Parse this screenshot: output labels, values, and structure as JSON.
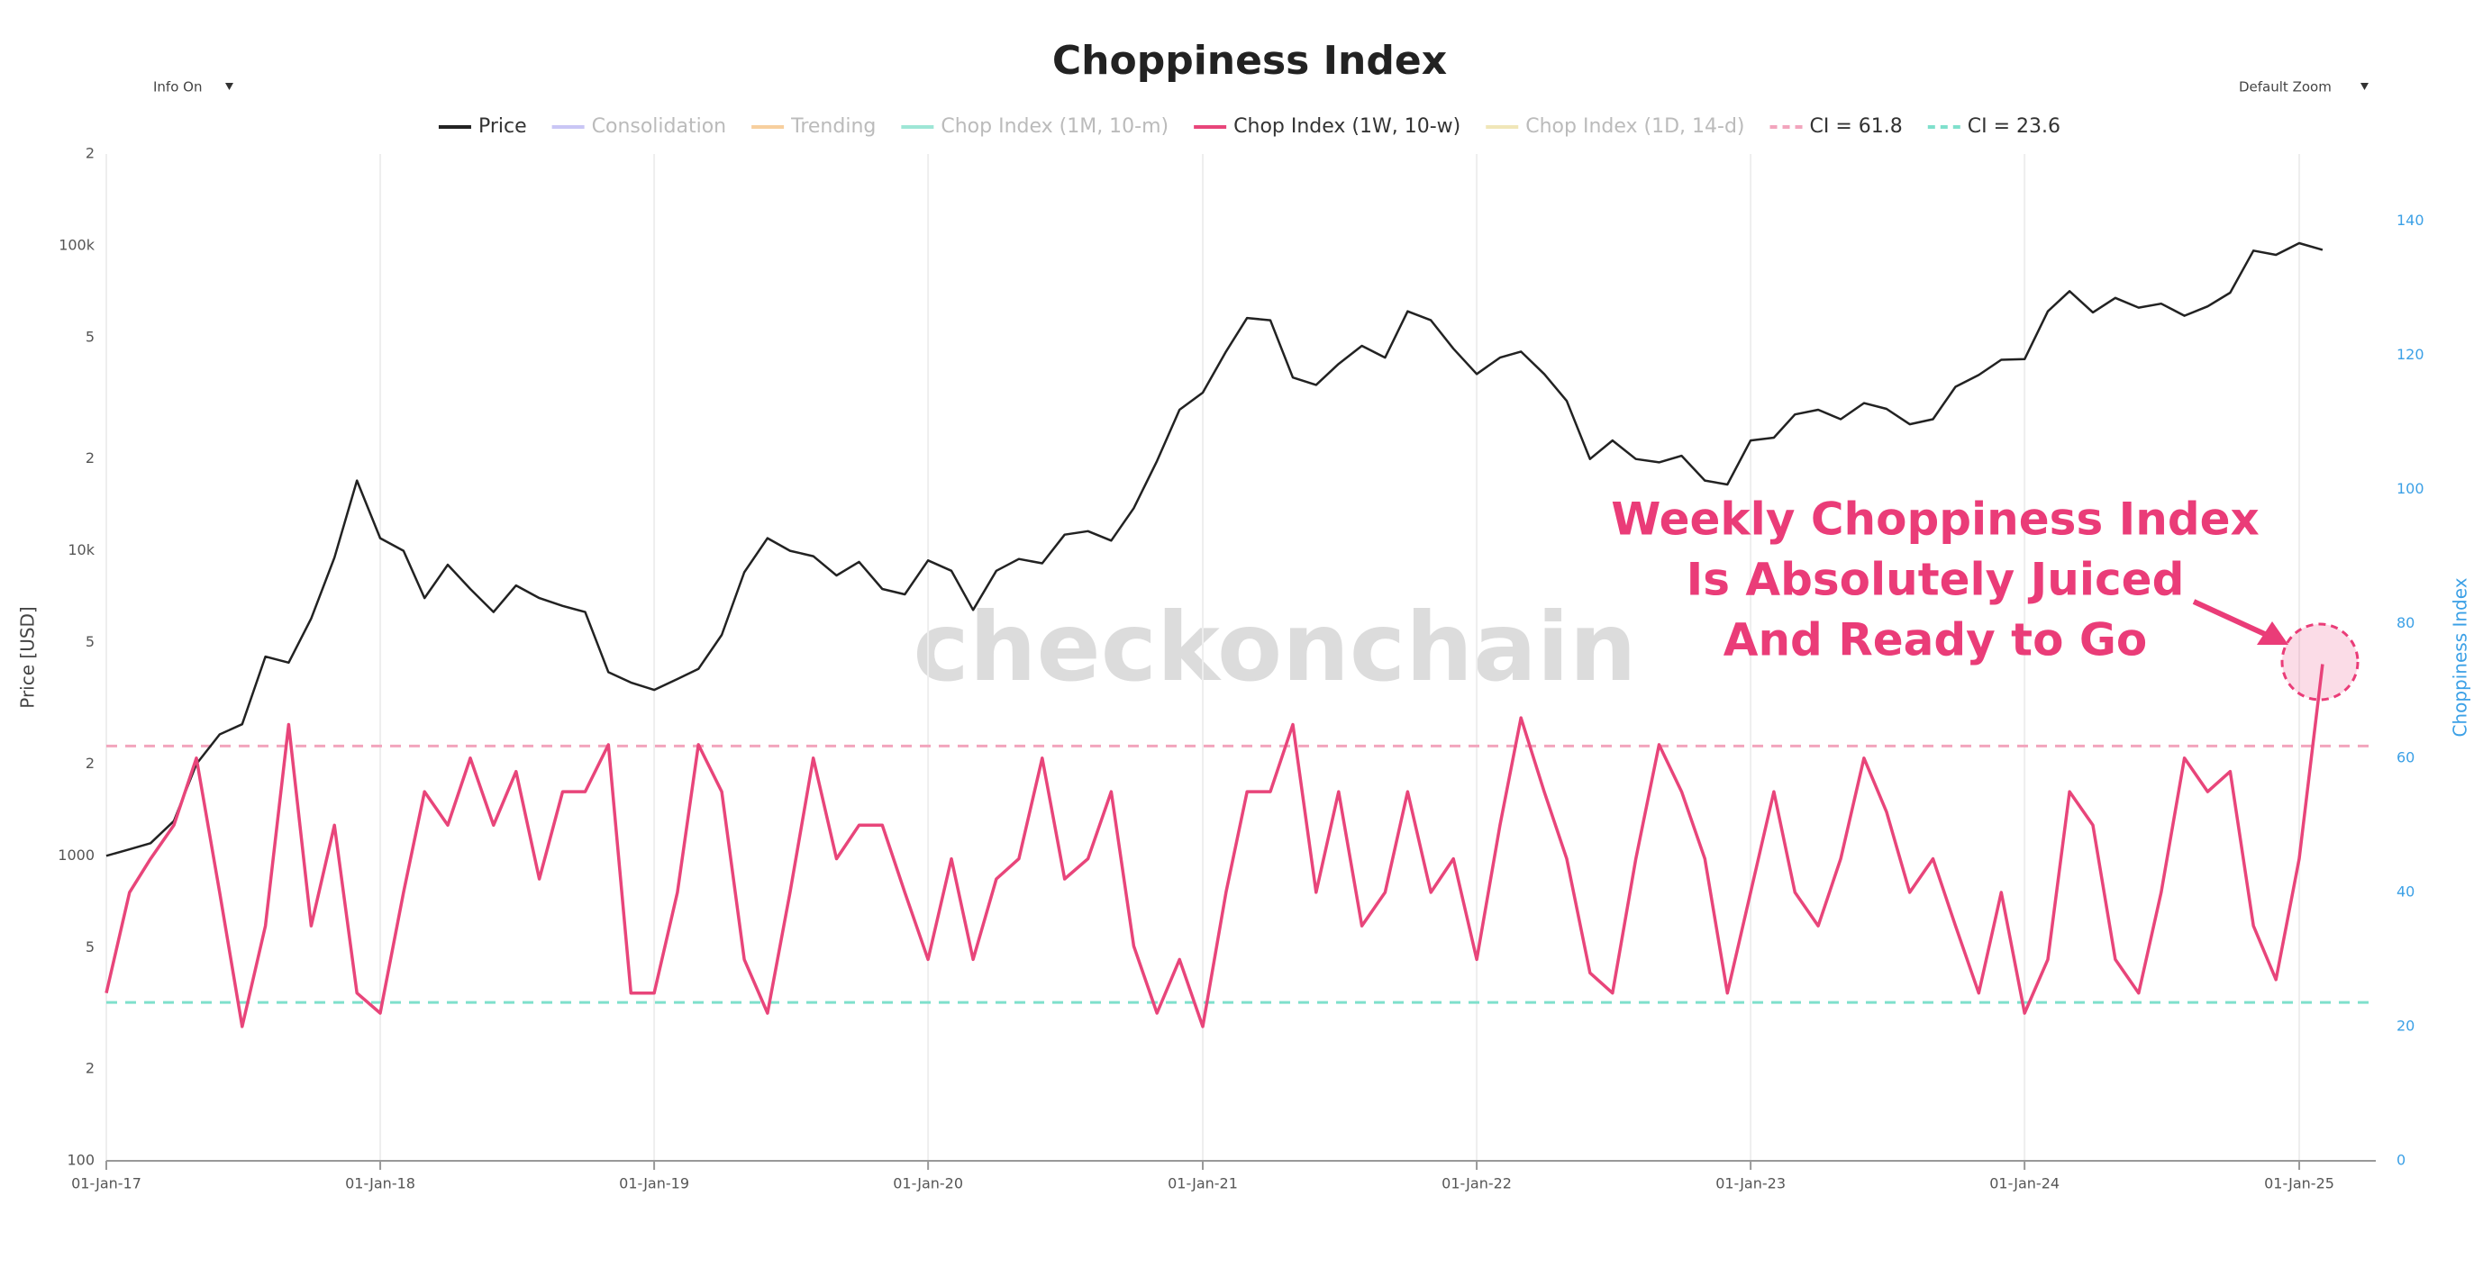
{
  "chart_data": {
    "type": "line",
    "title": "Choppiness Index",
    "controls": [
      "Info On",
      "Default Zoom"
    ],
    "ylabel": "Price [USD]",
    "y2label": "Choppiness Index",
    "watermark": "checkonchain",
    "annotation": [
      "Weekly Choppiness Index",
      "Is Absolutely Juiced",
      "And Ready to Go"
    ],
    "annotation_color": "#ea3c78",
    "log_y": true,
    "grid": "x",
    "xlim": [
      "2017-01-01",
      "2025-04-13"
    ],
    "xticks": [
      {
        "value": "2017-01-01",
        "label": "01-Jan-17"
      },
      {
        "value": "2018-01-01",
        "label": "01-Jan-18"
      },
      {
        "value": "2019-01-01",
        "label": "01-Jan-19"
      },
      {
        "value": "2020-01-01",
        "label": "01-Jan-20"
      },
      {
        "value": "2021-01-01",
        "label": "01-Jan-21"
      },
      {
        "value": "2022-01-01",
        "label": "01-Jan-22"
      },
      {
        "value": "2023-01-01",
        "label": "01-Jan-23"
      },
      {
        "value": "2024-01-01",
        "label": "01-Jan-24"
      },
      {
        "value": "2025-01-01",
        "label": "01-Jan-25"
      }
    ],
    "ylim": [
      100,
      200000
    ],
    "yticks": [
      100,
      {
        "value": 200,
        "label": "2"
      },
      {
        "value": 500,
        "label": "5"
      },
      1000,
      {
        "value": 2000,
        "label": "2"
      },
      {
        "value": 5000,
        "label": "5"
      },
      {
        "value": 10000,
        "label": "10k"
      },
      {
        "value": 20000,
        "label": "2"
      },
      {
        "value": 50000,
        "label": "5"
      },
      {
        "value": 100000,
        "label": "100k"
      },
      {
        "value": 200000,
        "label": "2"
      }
    ],
    "y2lim": [
      0,
      150
    ],
    "y2ticks": [
      0,
      20,
      40,
      60,
      80,
      100,
      120,
      140
    ],
    "x": [
      "2017-01-01",
      "2017-02-01",
      "2017-03-01",
      "2017-04-01",
      "2017-05-01",
      "2017-06-01",
      "2017-07-01",
      "2017-08-01",
      "2017-09-01",
      "2017-10-01",
      "2017-11-01",
      "2017-12-01",
      "2018-01-01",
      "2018-02-01",
      "2018-03-01",
      "2018-04-01",
      "2018-05-01",
      "2018-06-01",
      "2018-07-01",
      "2018-08-01",
      "2018-09-01",
      "2018-10-01",
      "2018-11-01",
      "2018-12-01",
      "2019-01-01",
      "2019-02-01",
      "2019-03-01",
      "2019-04-01",
      "2019-05-01",
      "2019-06-01",
      "2019-07-01",
      "2019-08-01",
      "2019-09-01",
      "2019-10-01",
      "2019-11-01",
      "2019-12-01",
      "2020-01-01",
      "2020-02-01",
      "2020-03-01",
      "2020-04-01",
      "2020-05-01",
      "2020-06-01",
      "2020-07-01",
      "2020-08-01",
      "2020-09-01",
      "2020-10-01",
      "2020-11-01",
      "2020-12-01",
      "2021-01-01",
      "2021-02-01",
      "2021-03-01",
      "2021-04-01",
      "2021-05-01",
      "2021-06-01",
      "2021-07-01",
      "2021-08-01",
      "2021-09-01",
      "2021-10-01",
      "2021-11-01",
      "2021-12-01",
      "2022-01-01",
      "2022-02-01",
      "2022-03-01",
      "2022-04-01",
      "2022-05-01",
      "2022-06-01",
      "2022-07-01",
      "2022-08-01",
      "2022-09-01",
      "2022-10-01",
      "2022-11-01",
      "2022-12-01",
      "2023-01-01",
      "2023-02-01",
      "2023-03-01",
      "2023-04-01",
      "2023-05-01",
      "2023-06-01",
      "2023-07-01",
      "2023-08-01",
      "2023-09-01",
      "2023-10-01",
      "2023-11-01",
      "2023-12-01",
      "2024-01-01",
      "2024-02-01",
      "2024-03-01",
      "2024-04-01",
      "2024-05-01",
      "2024-06-01",
      "2024-07-01",
      "2024-08-01",
      "2024-09-01",
      "2024-10-01",
      "2024-11-01",
      "2024-12-01",
      "2025-01-01",
      "2025-02-01"
    ],
    "series": [
      {
        "name": "Price",
        "color": "#222222",
        "visible": true,
        "values": [
          1000,
          1050,
          1100,
          1300,
          2000,
          2500,
          2700,
          4500,
          4300,
          6000,
          9500,
          17000,
          11000,
          10000,
          7000,
          9000,
          7500,
          6300,
          7700,
          7000,
          6600,
          6300,
          4000,
          3700,
          3500,
          3800,
          4100,
          5300,
          8500,
          11000,
          10000,
          9600,
          8300,
          9200,
          7500,
          7200,
          9300,
          8600,
          6400,
          8600,
          9400,
          9100,
          11300,
          11600,
          10800,
          13800,
          19700,
          29000,
          33000,
          45000,
          58000,
          57000,
          37000,
          35000,
          41000,
          47000,
          43000,
          61000,
          57000,
          46000,
          38000,
          43000,
          45000,
          38000,
          31000,
          20000,
          23000,
          20000,
          19500,
          20500,
          17000,
          16500,
          23000,
          23500,
          28000,
          29000,
          27000,
          30500,
          29200,
          26000,
          27000,
          34500,
          37700,
          42300,
          42500,
          61000,
          71000,
          60500,
          67500,
          62700,
          64600,
          59000,
          63300,
          70200,
          96400,
          93400,
          102000,
          97000
        ]
      },
      {
        "name": "Consolidation",
        "color": "#c9c6f5",
        "visible": false
      },
      {
        "name": "Trending",
        "color": "#f7cf9e",
        "visible": false
      },
      {
        "name": "Chop Index (1M, 10-m)",
        "color": "#9ee6d6",
        "visible": false
      },
      {
        "name": "Chop Index (1W, 10-w)",
        "color": "#e8457a",
        "visible": true,
        "axis": "y2",
        "values": [
          25,
          40,
          45,
          50,
          60,
          40,
          20,
          35,
          65,
          35,
          50,
          25,
          22,
          40,
          55,
          50,
          60,
          50,
          58,
          42,
          55,
          55,
          62,
          25,
          25,
          40,
          62,
          55,
          30,
          22,
          40,
          60,
          45,
          50,
          50,
          40,
          30,
          45,
          30,
          42,
          45,
          60,
          42,
          45,
          55,
          32,
          22,
          30,
          20,
          40,
          55,
          55,
          65,
          40,
          55,
          35,
          40,
          55,
          40,
          45,
          30,
          50,
          66,
          55,
          45,
          28,
          25,
          45,
          62,
          55,
          45,
          25,
          40,
          55,
          40,
          35,
          45,
          60,
          52,
          40,
          45,
          35,
          25,
          40,
          22,
          30,
          55,
          50,
          30,
          25,
          40,
          60,
          55,
          58,
          35,
          27,
          45,
          74
        ]
      },
      {
        "name": "Chop Index (1D, 14-d)",
        "color": "#f0e6b8",
        "visible": false
      }
    ],
    "hlines": [
      {
        "name": "CI = 61.8",
        "value": 61.8,
        "color": "#f2a5bd"
      },
      {
        "name": "CI = 23.6",
        "value": 23.6,
        "color": "#7fe0cc"
      }
    ]
  }
}
